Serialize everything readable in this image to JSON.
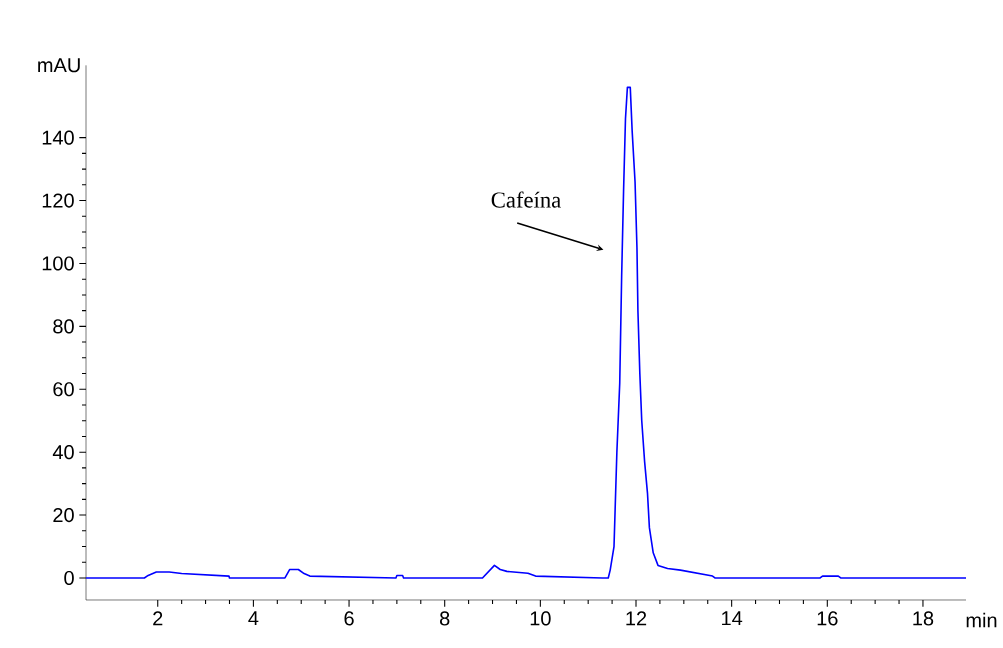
{
  "chart_data": {
    "type": "line",
    "xlabel": "min",
    "ylabel": "mAU",
    "x": [
      0.5,
      1.72,
      1.8,
      1.97,
      2.24,
      2.5,
      3.49,
      3.5,
      4.66,
      4.76,
      4.94,
      5.06,
      5.18,
      6.98,
      7.0,
      7.12,
      7.14,
      8.79,
      9.04,
      9.16,
      9.3,
      9.74,
      9.9,
      11.3,
      11.42,
      11.46,
      11.54,
      11.6,
      11.66,
      11.7,
      11.74,
      11.78,
      11.82,
      11.88,
      11.92,
      11.98,
      12.02,
      12.04,
      12.08,
      12.12,
      12.18,
      12.24,
      12.28,
      12.36,
      12.46,
      12.66,
      12.93,
      13.6,
      13.65,
      15.85,
      15.9,
      16.23,
      16.28,
      18.9
    ],
    "series": [
      {
        "color": "#0000ff",
        "values": [
          0,
          0,
          0.8,
          1.9,
          1.9,
          1.4,
          0.6,
          0,
          0,
          2.7,
          2.7,
          1.4,
          0.6,
          0,
          0.8,
          0.8,
          0,
          0,
          4.0,
          2.7,
          2.1,
          1.5,
          0.6,
          0,
          0,
          2.5,
          10,
          40,
          62,
          96,
          123,
          146,
          156,
          156,
          142,
          126,
          105,
          85,
          65,
          50,
          37,
          27,
          16,
          8,
          4,
          3,
          2.5,
          0.6,
          0,
          0,
          0.6,
          0.6,
          0,
          0
        ]
      }
    ],
    "xlim": [
      0.5,
      18.9
    ],
    "ylim": [
      -7,
      163
    ],
    "xticks": [
      2,
      4,
      6,
      8,
      10,
      12,
      14,
      16,
      18
    ],
    "yticks": [
      0,
      20,
      40,
      60,
      80,
      100,
      120,
      140
    ],
    "grid": false,
    "marker": "none",
    "line_style": "solid",
    "annotations": [
      "Cafeína"
    ]
  }
}
